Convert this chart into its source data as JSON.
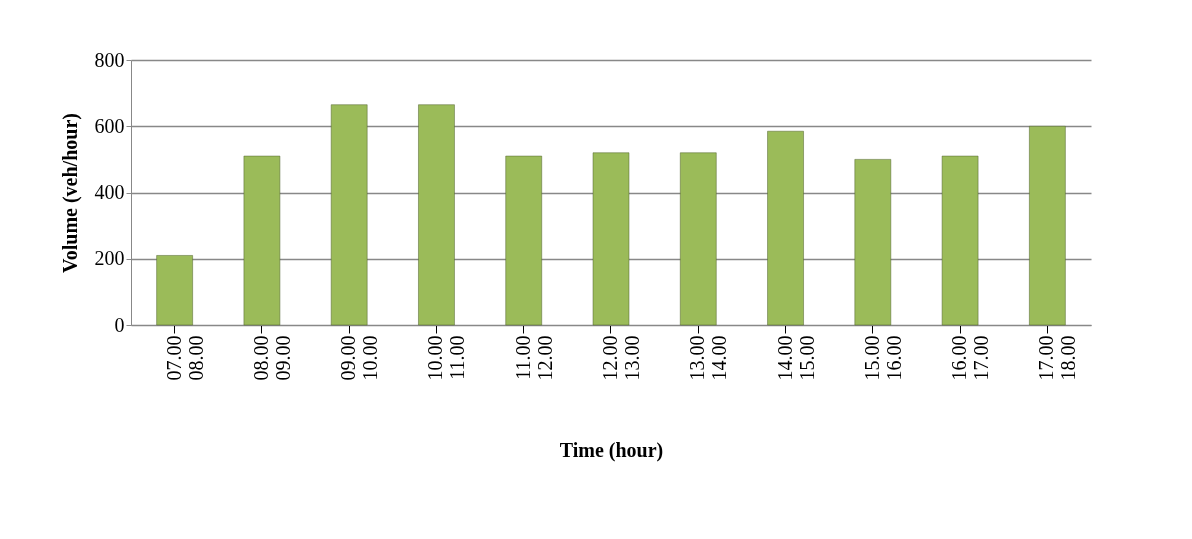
{
  "chart_data": {
    "type": "bar",
    "xlabel": "Time (hour)",
    "ylabel": "Volume (veh/hour)",
    "categories": [
      "07.00 08.00",
      "08.00 09.00",
      "09.00 10.00",
      "10.00 11.00",
      "11.00 12.00",
      "12.00 13.00",
      "13.00 14.00",
      "14.00 15.00",
      "15.00 16.00",
      "16.00 17.00",
      "17.00 18.00"
    ],
    "values": [
      210,
      510,
      665,
      665,
      510,
      520,
      520,
      585,
      500,
      510,
      600
    ],
    "color": "#9bbb59",
    "ylim": [
      0,
      800
    ],
    "yticks": [
      0,
      200,
      400,
      600,
      800
    ],
    "grid": "y"
  }
}
